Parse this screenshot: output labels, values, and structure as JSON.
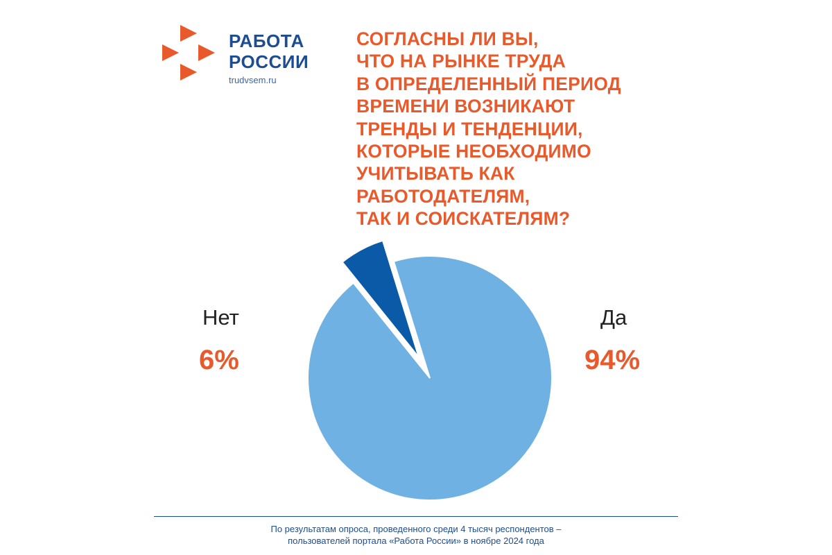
{
  "brand": {
    "line1": "РАБОТА",
    "line2": "РОССИИ",
    "site": "trudvsem.ru",
    "colors": {
      "mark": "#e85a2c",
      "text": "#1c4c91"
    }
  },
  "question_lines": [
    "СОГЛАСНЫ ЛИ ВЫ,",
    "ЧТО НА РЫНКЕ ТРУДА",
    "В ОПРЕДЕЛЕННЫЙ ПЕРИОД",
    "ВРЕМЕНИ ВОЗНИКАЮТ",
    "ТРЕНДЫ И ТЕНДЕНЦИИ,",
    "КОТОРЫЕ НЕОБХОДИМО",
    "УЧИТЫВАТЬ КАК",
    "РАБОТОДАТЕЛЯМ,",
    "ТАК И СОИСКАТЕЛЯМ?"
  ],
  "chart_data": {
    "type": "pie",
    "slices": [
      {
        "label": "Да",
        "value": 94,
        "display": "94%",
        "color": "#6fb1e3",
        "exploded": false
      },
      {
        "label": "Нет",
        "value": 6,
        "display": "6%",
        "color": "#0a5aa8",
        "exploded": true
      }
    ]
  },
  "footnote": {
    "line1": "По результатам опроса, проведенного среди 4 тысяч респондентов –",
    "line2": "пользователей портала «Работа России» в ноябре 2024 года"
  }
}
